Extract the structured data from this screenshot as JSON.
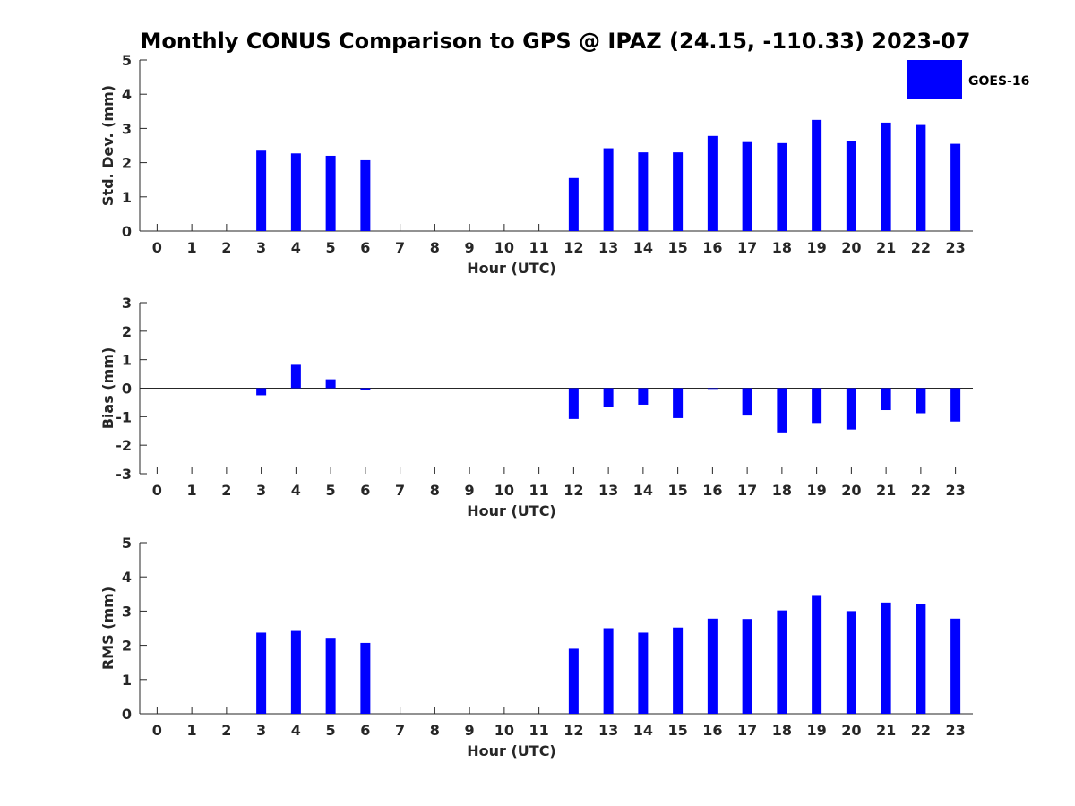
{
  "title": "Monthly CONUS Comparison to GPS @ IPAZ (24.15, -110.33) 2023-07",
  "legend": {
    "label": "GOES-16",
    "color": "#0000ff",
    "placement": "top-right"
  },
  "chart_data": [
    {
      "type": "bar",
      "xlabel": "Hour (UTC)",
      "ylabel": "Std. Dev. (mm)",
      "ylim": [
        0,
        5
      ],
      "yticks": [
        0,
        1,
        2,
        3,
        4,
        5
      ],
      "categories": [
        "0",
        "1",
        "2",
        "3",
        "4",
        "5",
        "6",
        "7",
        "8",
        "9",
        "10",
        "11",
        "12",
        "13",
        "14",
        "15",
        "16",
        "17",
        "18",
        "19",
        "20",
        "21",
        "22",
        "23"
      ],
      "series": [
        {
          "name": "GOES-16",
          "color": "#0000ff",
          "values": [
            null,
            null,
            null,
            2.35,
            2.27,
            2.2,
            2.07,
            null,
            null,
            null,
            null,
            null,
            1.55,
            2.42,
            2.3,
            2.3,
            2.78,
            2.6,
            2.57,
            3.25,
            2.62,
            3.17,
            3.1,
            2.55
          ]
        }
      ],
      "grid": false
    },
    {
      "type": "bar",
      "xlabel": "Hour (UTC)",
      "ylabel": "Bias (mm)",
      "ylim": [
        -3,
        3
      ],
      "yticks": [
        -3,
        -2,
        -1,
        0,
        1,
        2,
        3
      ],
      "categories": [
        "0",
        "1",
        "2",
        "3",
        "4",
        "5",
        "6",
        "7",
        "8",
        "9",
        "10",
        "11",
        "12",
        "13",
        "14",
        "15",
        "16",
        "17",
        "18",
        "19",
        "20",
        "21",
        "22",
        "23"
      ],
      "series": [
        {
          "name": "GOES-16",
          "color": "#0000ff",
          "values": [
            null,
            null,
            null,
            -0.25,
            0.82,
            0.31,
            -0.05,
            null,
            null,
            null,
            null,
            null,
            -1.08,
            -0.67,
            -0.58,
            -1.05,
            0.0,
            -0.93,
            -1.55,
            -1.22,
            -1.45,
            -0.77,
            -0.88,
            -1.17
          ]
        }
      ],
      "grid": false
    },
    {
      "type": "bar",
      "xlabel": "Hour (UTC)",
      "ylabel": "RMS (mm)",
      "ylim": [
        0,
        5
      ],
      "yticks": [
        0,
        1,
        2,
        3,
        4,
        5
      ],
      "categories": [
        "0",
        "1",
        "2",
        "3",
        "4",
        "5",
        "6",
        "7",
        "8",
        "9",
        "10",
        "11",
        "12",
        "13",
        "14",
        "15",
        "16",
        "17",
        "18",
        "19",
        "20",
        "21",
        "22",
        "23"
      ],
      "series": [
        {
          "name": "GOES-16",
          "color": "#0000ff",
          "values": [
            null,
            null,
            null,
            2.37,
            2.42,
            2.22,
            2.07,
            null,
            null,
            null,
            null,
            null,
            1.9,
            2.5,
            2.37,
            2.52,
            2.78,
            2.77,
            3.02,
            3.47,
            3.0,
            3.25,
            3.22,
            2.78
          ]
        }
      ],
      "grid": false
    }
  ]
}
